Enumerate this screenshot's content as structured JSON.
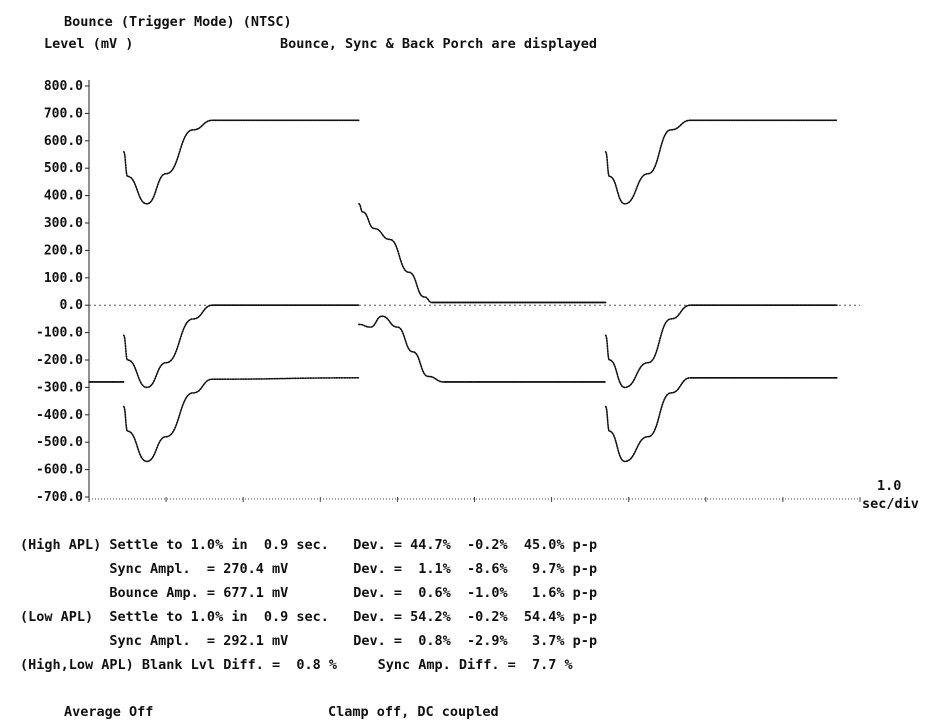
{
  "header": {
    "title": "Bounce (Trigger Mode) (NTSC)",
    "ylabel": "Level (mV )",
    "note": "Bounce, Sync & Back Porch are displayed"
  },
  "chart_data": {
    "type": "line",
    "title": "Bounce (Trigger Mode) (NTSC)",
    "ylabel": "Level (mV )",
    "xlabel": "",
    "xscale_label": [
      "1.0",
      "sec/div"
    ],
    "ylim": [
      -700,
      800
    ],
    "yticks": [
      "800.0",
      "700.0",
      "600.0",
      "500.0",
      "400.0",
      "300.0",
      "200.0",
      "100.0",
      "0.0",
      "-100.0",
      "-200.0",
      "-300.0",
      "-400.0",
      "-500.0",
      "-600.0",
      "-700.0"
    ],
    "x_units": "div",
    "xlim": [
      0,
      10
    ],
    "series": [
      {
        "points": [
          [
            0.45,
            560
          ],
          [
            0.5,
            470
          ],
          [
            0.75,
            370
          ],
          [
            1.0,
            480
          ],
          [
            1.35,
            640
          ],
          [
            1.6,
            675
          ],
          [
            3.5,
            675
          ]
        ]
      },
      {
        "points": [
          [
            3.5,
            370
          ],
          [
            3.55,
            340
          ],
          [
            3.7,
            280
          ],
          [
            3.9,
            240
          ],
          [
            4.15,
            120
          ],
          [
            4.35,
            30
          ],
          [
            4.45,
            10
          ],
          [
            6.7,
            10
          ]
        ]
      },
      {
        "points": [
          [
            6.7,
            560
          ],
          [
            6.75,
            470
          ],
          [
            6.95,
            370
          ],
          [
            7.25,
            480
          ],
          [
            7.55,
            640
          ],
          [
            7.8,
            675
          ],
          [
            9.7,
            675
          ]
        ]
      },
      {
        "points": [
          [
            0.45,
            -110
          ],
          [
            0.5,
            -200
          ],
          [
            0.75,
            -300
          ],
          [
            1.0,
            -210
          ],
          [
            1.35,
            -50
          ],
          [
            1.6,
            0
          ],
          [
            3.5,
            0
          ]
        ]
      },
      {
        "points": [
          [
            3.5,
            -70
          ],
          [
            3.65,
            -80
          ],
          [
            3.8,
            -40
          ],
          [
            4.0,
            -80
          ],
          [
            4.2,
            -170
          ],
          [
            4.4,
            -260
          ],
          [
            4.6,
            -280
          ],
          [
            6.7,
            -280
          ]
        ]
      },
      {
        "points": [
          [
            6.7,
            -110
          ],
          [
            6.75,
            -200
          ],
          [
            6.95,
            -300
          ],
          [
            7.25,
            -210
          ],
          [
            7.55,
            -50
          ],
          [
            7.8,
            0
          ],
          [
            9.7,
            0
          ]
        ]
      },
      {
        "points": [
          [
            0,
            -280
          ],
          [
            0.45,
            -280
          ]
        ]
      },
      {
        "points": [
          [
            0.45,
            -370
          ],
          [
            0.5,
            -460
          ],
          [
            0.75,
            -570
          ],
          [
            1.0,
            -480
          ],
          [
            1.35,
            -320
          ],
          [
            1.6,
            -270
          ],
          [
            3.5,
            -265
          ]
        ]
      },
      {
        "points": [
          [
            6.7,
            -370
          ],
          [
            6.75,
            -460
          ],
          [
            6.95,
            -570
          ],
          [
            7.25,
            -480
          ],
          [
            7.55,
            -320
          ],
          [
            7.8,
            -265
          ],
          [
            9.7,
            -265
          ]
        ]
      }
    ],
    "baseline_series": {
      "points": [
        [
          0,
          0
        ],
        [
          10,
          0
        ]
      ]
    }
  },
  "results": {
    "rows": [
      "(High APL) Settle to 1.0% in  0.9 sec.   Dev. = 44.7%  -0.2%  45.0% p-p",
      "           Sync Ampl.  = 270.4 mV        Dev. =  1.1%  -8.6%   9.7% p-p",
      "           Bounce Amp. = 677.1 mV        Dev. =  0.6%  -1.0%   1.6% p-p",
      "(Low APL)  Settle to 1.0% in  0.9 sec.   Dev. = 54.2%  -0.2%  54.4% p-p",
      "           Sync Ampl.  = 292.1 mV        Dev. =  0.8%  -2.9%   3.7% p-p",
      "(High,Low APL) Blank Lvl Diff. =  0.8 %     Sync Amp. Diff. =  7.7 %"
    ]
  },
  "footer": {
    "average": "Average Off",
    "clamp": "Clamp off, DC coupled"
  }
}
